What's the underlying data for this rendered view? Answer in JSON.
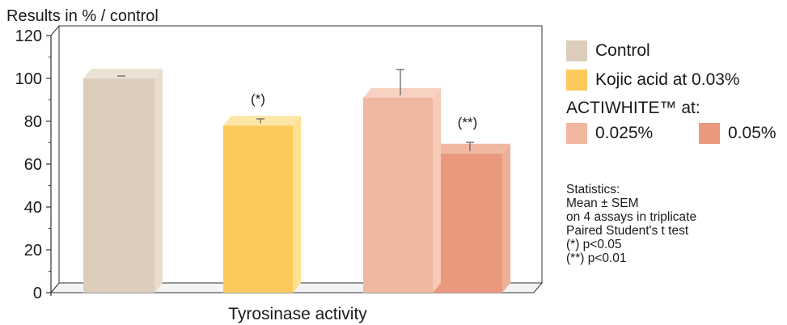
{
  "chart_data": {
    "type": "bar",
    "title": "",
    "ylabel": "Results in % / control",
    "xlabel": "Tyrosinase activity",
    "ylim": [
      0,
      120
    ],
    "yticks": [
      0,
      20,
      40,
      60,
      80,
      100,
      120
    ],
    "grid": false,
    "three_d": true,
    "legend_position": "right",
    "series": [
      {
        "name": "Control",
        "value": 100,
        "error": 0,
        "annotation": "",
        "color": "#dccdbd",
        "side": "#e8dccd",
        "top": "#ebe1d4"
      },
      {
        "name": "Kojic acid at 0.03%",
        "value": 78,
        "error": 2,
        "annotation": "(*)",
        "color": "#fcca5c",
        "side": "#fde090",
        "top": "#fde6a6"
      },
      {
        "name": "0.025%",
        "value": 91,
        "error": 12,
        "annotation": "",
        "color": "#f0b8a0",
        "side": "#f6cbb8",
        "top": "#f7d2c2"
      },
      {
        "name": "0.05%",
        "value": 65,
        "error": 4,
        "annotation": "(**)",
        "color": "#e99a7e",
        "side": "#efb098",
        "top": "#f1b8a2"
      }
    ],
    "legend_group_label": "ACTIWHITE™ at:",
    "statistics": [
      "Statistics:",
      "Mean ± SEM",
      "on 4 assays in triplicate",
      "Paired Student's t test",
      "(*) p<0.05",
      "(**) p<0.01"
    ]
  }
}
